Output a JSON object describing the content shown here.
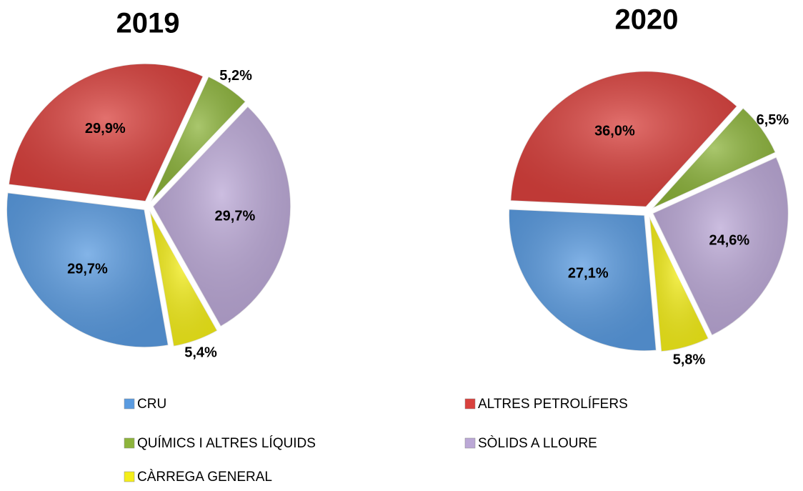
{
  "chart_data": [
    {
      "type": "pie",
      "title": "2019",
      "categories": [
        "CRU",
        "ALTRES PETROLÍFERS",
        "QUÍMICS I ALTRES LÍQUIDS",
        "SÒLIDS A LLOURE",
        "CÀRREGA GENERAL"
      ],
      "colors": [
        "#5a9be0",
        "#d9413d",
        "#8db43c",
        "#bba8d6",
        "#f4ee1a"
      ],
      "values": [
        29.7,
        29.9,
        5.2,
        29.7,
        5.4
      ],
      "value_labels": [
        "29,7%",
        "29,9%",
        "5,2%",
        "29,7%",
        "5,4%"
      ]
    },
    {
      "type": "pie",
      "title": "2020",
      "values": [
        27.1,
        36.0,
        6.5,
        24.6,
        5.8
      ],
      "value_labels": [
        "27,1%",
        "36,0%",
        "6,5%",
        "24,6%",
        "5,8%"
      ]
    }
  ]
}
